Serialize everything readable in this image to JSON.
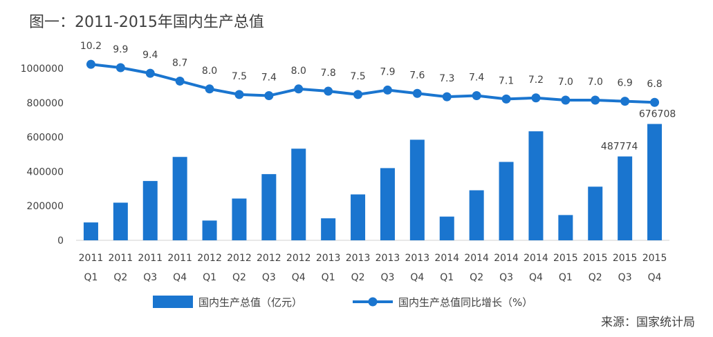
{
  "title": "图一：2011-2015年国内生产总值",
  "source": "来源：国家统计局",
  "chart_data": {
    "type": "bar",
    "title": "图一：2011-2015年国内生产总值",
    "categories": [
      [
        "2011",
        "Q1"
      ],
      [
        "2011",
        "Q2"
      ],
      [
        "2011",
        "Q3"
      ],
      [
        "2011",
        "Q4"
      ],
      [
        "2012",
        "Q1"
      ],
      [
        "2012",
        "Q2"
      ],
      [
        "2012",
        "Q3"
      ],
      [
        "2012",
        "Q4"
      ],
      [
        "2013",
        "Q1"
      ],
      [
        "2013",
        "Q2"
      ],
      [
        "2013",
        "Q3"
      ],
      [
        "2013",
        "Q4"
      ],
      [
        "2014",
        "Q1"
      ],
      [
        "2014",
        "Q2"
      ],
      [
        "2014",
        "Q3"
      ],
      [
        "2014",
        "Q4"
      ],
      [
        "2015",
        "Q1"
      ],
      [
        "2015",
        "Q2"
      ],
      [
        "2015",
        "Q3"
      ],
      [
        "2015",
        "Q4"
      ]
    ],
    "y_ticks": [
      "0",
      "200000",
      "400000",
      "600000",
      "800000",
      "1000000"
    ],
    "ylim": [
      0,
      1000000
    ],
    "grid": false,
    "legend_position": "bottom",
    "series": [
      {
        "name": "国内生产总值（亿元）",
        "type": "bar",
        "color": "#1a75cf",
        "values": [
          104000,
          219000,
          345000,
          485000,
          115000,
          243000,
          385000,
          533000,
          128000,
          267000,
          420000,
          585000,
          138000,
          291000,
          456000,
          634000,
          147000,
          312000,
          487774,
          676708
        ],
        "labels": {
          "18": "487774",
          "19": "676708"
        }
      },
      {
        "name": "国内生产总值同比增长（%）",
        "type": "line",
        "color": "#1a75cf",
        "values": [
          10.2,
          9.9,
          9.4,
          8.7,
          8.0,
          7.5,
          7.4,
          8.0,
          7.8,
          7.5,
          7.9,
          7.6,
          7.3,
          7.4,
          7.1,
          7.2,
          7.0,
          7.0,
          6.9,
          6.8
        ],
        "display_labels": [
          "10.2",
          "9.9",
          "9.4",
          "8.7",
          "8.0",
          "7.5",
          "7.4",
          "8.0",
          "7.8",
          "7.5",
          "7.9",
          "7.6",
          "7.3",
          "7.4",
          "7.1",
          "7.2",
          "7.0",
          "7.0",
          "6.9",
          "6.8"
        ]
      }
    ]
  }
}
